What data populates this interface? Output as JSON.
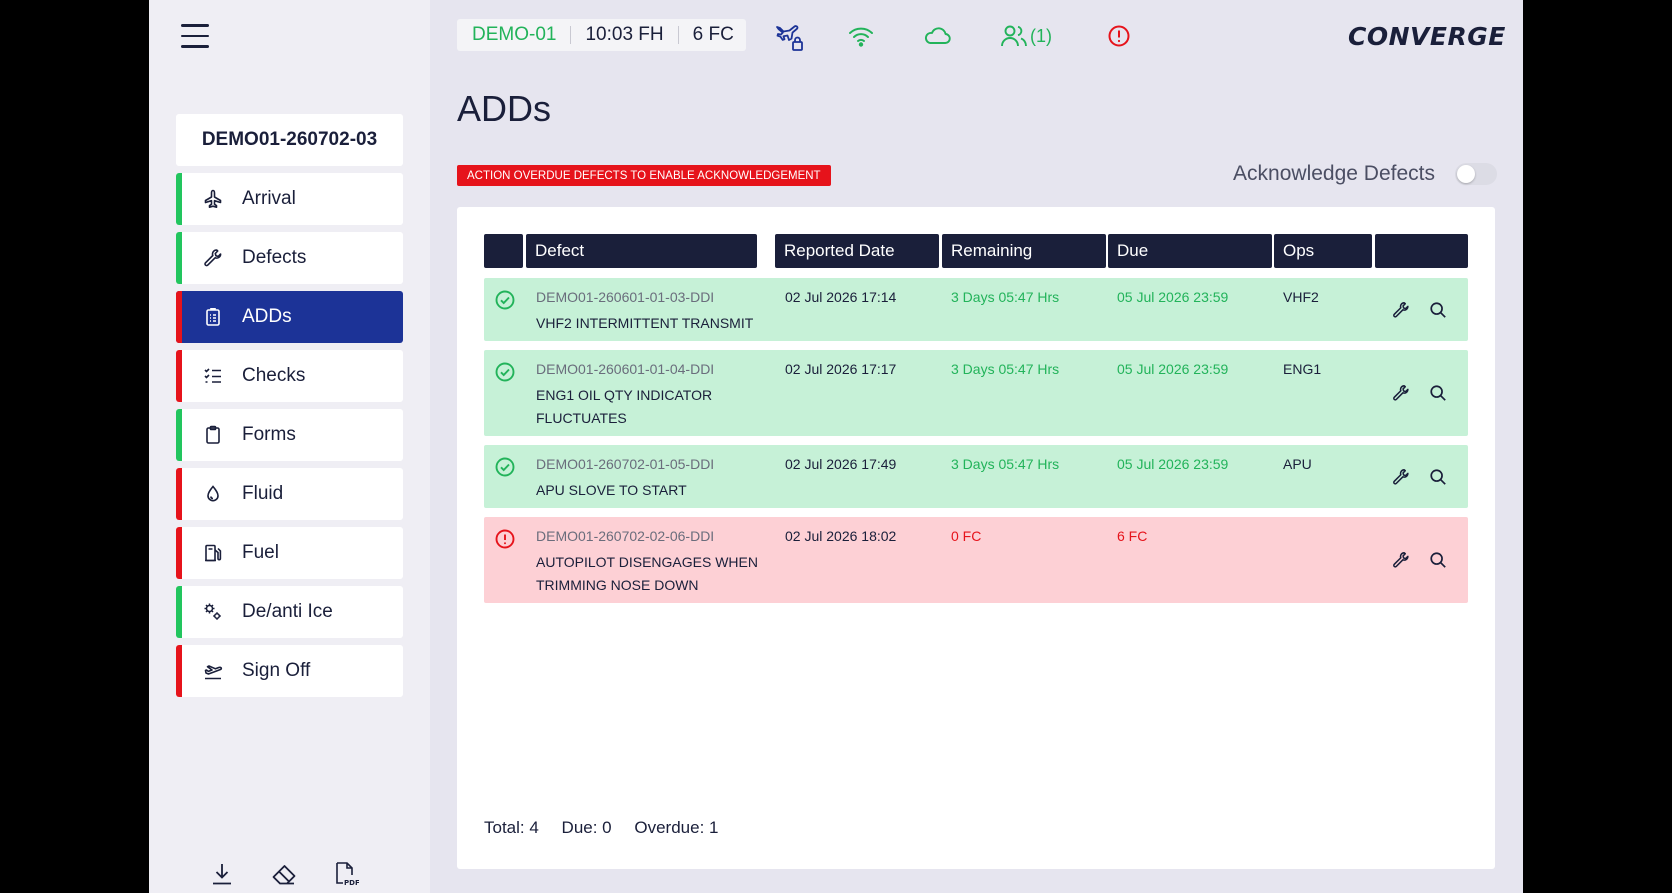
{
  "flight": {
    "id": "DEMO01-260702-03"
  },
  "nav": [
    {
      "label": "Arrival",
      "icon": "airplane-icon",
      "status": "#22c55e"
    },
    {
      "label": "Defects",
      "icon": "wrench-icon",
      "status": "#22c55e"
    },
    {
      "label": "ADDs",
      "icon": "clipboard-list-icon",
      "status": "#e6131b",
      "active": true
    },
    {
      "label": "Checks",
      "icon": "checklist-icon",
      "status": "#e6131b"
    },
    {
      "label": "Forms",
      "icon": "clipboard-icon",
      "status": "#22c55e"
    },
    {
      "label": "Fluid",
      "icon": "droplet-icon",
      "status": "#e6131b"
    },
    {
      "label": "Fuel",
      "icon": "fuel-pump-icon",
      "status": "#e6131b"
    },
    {
      "label": "De/anti Ice",
      "icon": "gears-icon",
      "status": "#22c55e"
    },
    {
      "label": "Sign Off",
      "icon": "takeoff-icon",
      "status": "#e6131b"
    }
  ],
  "status_bar": {
    "registration": "DEMO-01",
    "flight_hours": "10:03 FH",
    "flight_cycles": "6 FC",
    "users": "(1)"
  },
  "brand": {
    "logo": "CONVERGE"
  },
  "page": {
    "title": "ADDs"
  },
  "banner": {
    "text": "ACTION OVERDUE DEFECTS TO ENABLE ACKNOWLEDGEMENT"
  },
  "acknowledge": {
    "label": "Acknowledge Defects",
    "enabled": false
  },
  "table": {
    "headers": {
      "defect": "Defect",
      "reported": "Reported Date",
      "remaining": "Remaining",
      "due": "Due",
      "ops": "Ops"
    },
    "rows": [
      {
        "status": "ok",
        "code": "DEMO01-260601-01-03-DDI",
        "description": "VHF2 INTERMITTENT TRANSMIT",
        "reported": "02 Jul 2026 17:14",
        "remaining": "3 Days 05:47 Hrs",
        "due": "05 Jul 2026 23:59",
        "ops": "VHF2"
      },
      {
        "status": "ok",
        "code": "DEMO01-260601-01-04-DDI",
        "description": "ENG1 OIL QTY INDICATOR FLUCTUATES",
        "reported": "02 Jul 2026 17:17",
        "remaining": "3 Days 05:47 Hrs",
        "due": "05 Jul 2026 23:59",
        "ops": "ENG1"
      },
      {
        "status": "ok",
        "code": "DEMO01-260702-01-05-DDI",
        "description": "APU SLOVE TO START",
        "reported": "02 Jul 2026 17:49",
        "remaining": "3 Days 05:47 Hrs",
        "due": "05 Jul 2026 23:59",
        "ops": "APU"
      },
      {
        "status": "bad",
        "code": "DEMO01-260702-02-06-DDI",
        "description": "AUTOPILOT DISENGAGES WHEN TRIMMING NOSE DOWN",
        "reported": "02 Jul 2026 18:02",
        "remaining": "0 FC",
        "due": "6 FC",
        "ops": ""
      }
    ]
  },
  "totals": {
    "total": "Total: 4",
    "due": "Due: 0",
    "overdue": "Overdue: 1"
  },
  "colors": {
    "green": "#22b35a",
    "red": "#e6131b",
    "navy": "#1a1f3a",
    "active": "#1c3397"
  }
}
